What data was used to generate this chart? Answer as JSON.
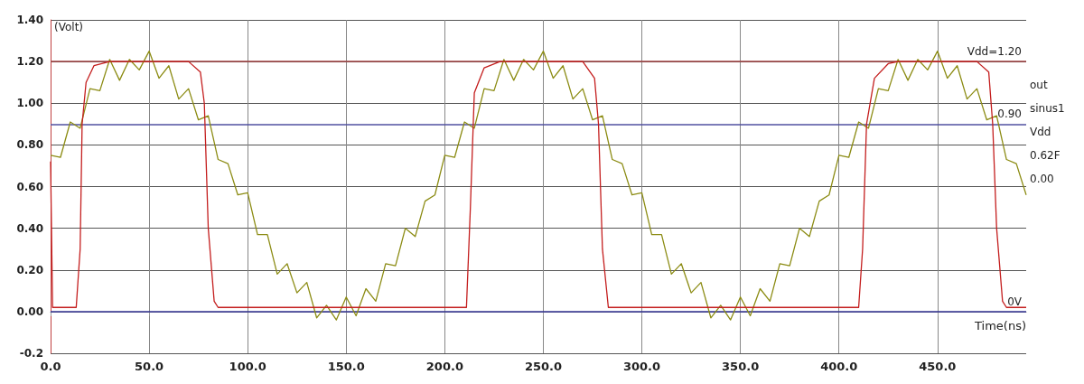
{
  "chart_data": {
    "type": "line",
    "xlabel": "Time(ns)",
    "ylabel": "(Volt)",
    "xlim": [
      0,
      495
    ],
    "ylim": [
      -0.2,
      1.4
    ],
    "xticks": [
      {
        "value": 0,
        "label": "0.0"
      },
      {
        "value": 50,
        "label": "50.0"
      },
      {
        "value": 100,
        "label": "100.0"
      },
      {
        "value": 150,
        "label": "150.0"
      },
      {
        "value": 200,
        "label": "200.0"
      },
      {
        "value": 250,
        "label": "250.0"
      },
      {
        "value": 300,
        "label": "300.0"
      },
      {
        "value": 350,
        "label": "350.0"
      },
      {
        "value": 400,
        "label": "400.0"
      },
      {
        "value": 450,
        "label": "450.0"
      }
    ],
    "yticks": [
      {
        "value": -0.2,
        "label": "-0.2"
      },
      {
        "value": 0,
        "label": "0.00"
      },
      {
        "value": 0.2,
        "label": "0.20"
      },
      {
        "value": 0.4,
        "label": "0.40"
      },
      {
        "value": 0.6,
        "label": "0.60"
      },
      {
        "value": 0.8,
        "label": "0.80"
      },
      {
        "value": 1.0,
        "label": "1.00"
      },
      {
        "value": 1.2,
        "label": "1.20"
      },
      {
        "value": 1.4,
        "label": "1.40"
      }
    ],
    "grid": true,
    "marker": "none",
    "line_style": "solid",
    "series": [
      {
        "color": "#8c8c14",
        "x": [
          0,
          5,
          10,
          15,
          20,
          25,
          30,
          35,
          40,
          45,
          50,
          55,
          60,
          65,
          70,
          75,
          80,
          85,
          90,
          95,
          100,
          105,
          110,
          115,
          120,
          125,
          130,
          135,
          140,
          145,
          150,
          155,
          160,
          165,
          170,
          175,
          180,
          185,
          190,
          195,
          200,
          205,
          210,
          215,
          220,
          225,
          230,
          235,
          240,
          245,
          250,
          255,
          260,
          265,
          270,
          275,
          280,
          285,
          290,
          295,
          300,
          305,
          310,
          315,
          320,
          325,
          330,
          335,
          340,
          345,
          350,
          355,
          360,
          365,
          370,
          375,
          380,
          385,
          390,
          395,
          400,
          405,
          410,
          415,
          420,
          425,
          430,
          435,
          440,
          445,
          450,
          455,
          460,
          465,
          470,
          475,
          480,
          485,
          490,
          495
        ],
        "values": [
          0.75,
          0.74,
          0.91,
          0.88,
          1.07,
          1.06,
          1.21,
          1.11,
          1.21,
          1.16,
          1.25,
          1.12,
          1.18,
          1.02,
          1.07,
          0.92,
          0.94,
          0.73,
          0.71,
          0.56,
          0.57,
          0.37,
          0.37,
          0.18,
          0.23,
          0.09,
          0.14,
          -0.03,
          0.03,
          -0.04,
          0.07,
          -0.02,
          0.11,
          0.05,
          0.23,
          0.22,
          0.4,
          0.36,
          0.53,
          0.56,
          0.75,
          0.74,
          0.91,
          0.88,
          1.07,
          1.06,
          1.21,
          1.11,
          1.21,
          1.16,
          1.25,
          1.12,
          1.18,
          1.02,
          1.07,
          0.92,
          0.94,
          0.73,
          0.71,
          0.56,
          0.57,
          0.37,
          0.37,
          0.18,
          0.23,
          0.09,
          0.14,
          -0.03,
          0.03,
          -0.04,
          0.07,
          -0.02,
          0.11,
          0.05,
          0.23,
          0.22,
          0.4,
          0.36,
          0.53,
          0.56,
          0.75,
          0.74,
          0.91,
          0.88,
          1.07,
          1.06,
          1.21,
          1.11,
          1.21,
          1.16,
          1.25,
          1.12,
          1.18,
          1.02,
          1.07,
          0.92,
          0.94,
          0.73,
          0.71,
          0.56
        ]
      },
      {
        "color": "#c41e1e",
        "x": [
          0,
          1,
          13,
          15,
          16,
          18,
          22,
          30,
          70,
          76,
          78,
          80,
          83,
          85,
          211,
          213,
          215,
          220,
          228,
          270,
          276,
          278,
          280,
          283,
          410,
          412,
          414,
          418,
          425,
          430,
          470,
          476,
          478,
          480,
          483,
          485,
          495
        ],
        "values": [
          0.72,
          0.02,
          0.02,
          0.3,
          0.9,
          1.1,
          1.18,
          1.2,
          1.2,
          1.15,
          1.0,
          0.4,
          0.05,
          0.02,
          0.02,
          0.5,
          1.05,
          1.17,
          1.2,
          1.2,
          1.12,
          0.9,
          0.3,
          0.02,
          0.02,
          0.3,
          0.9,
          1.12,
          1.19,
          1.2,
          1.2,
          1.15,
          0.9,
          0.4,
          0.05,
          0.02,
          0.02
        ]
      }
    ],
    "ref_lines": [
      {
        "axis": "y",
        "value": 1.2,
        "label": "Vdd=1.20",
        "color": "#a04040"
      },
      {
        "axis": "y",
        "value": 0.9,
        "label": "0.90",
        "color": "#5050a0"
      },
      {
        "axis": "y",
        "value": 0,
        "label": "0V",
        "color": "#303090"
      }
    ],
    "annotations": [
      "out",
      "sinus1",
      "Vdd",
      "0.62F",
      "0.00"
    ]
  }
}
